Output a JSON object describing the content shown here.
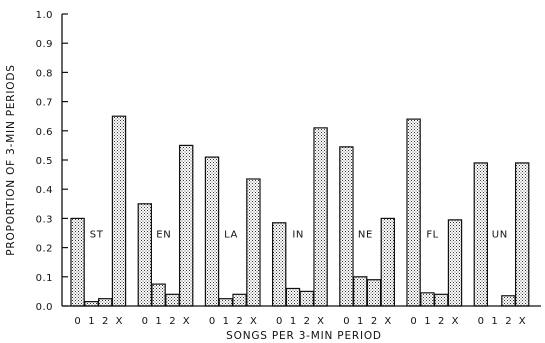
{
  "chart_data": {
    "type": "bar",
    "title": "",
    "xlabel": "SONGS PER 3-MIN PERIOD",
    "ylabel": "PROPORTION OF 3-MIN PERIODS",
    "ylim": [
      0,
      1.0
    ],
    "yticks": [
      "0.0",
      "0.1",
      "0.2",
      "0.3",
      "0.4",
      "0.5",
      "0.6",
      "0.7",
      "0.8",
      "0.9",
      "1.0"
    ],
    "categories": [
      "0",
      "1",
      "2",
      "X"
    ],
    "grid": false,
    "groups": [
      {
        "name": "ST",
        "values": [
          0.3,
          0.015,
          0.025,
          0.65
        ]
      },
      {
        "name": "EN",
        "values": [
          0.35,
          0.075,
          0.04,
          0.55
        ]
      },
      {
        "name": "LA",
        "values": [
          0.51,
          0.025,
          0.04,
          0.435
        ]
      },
      {
        "name": "IN",
        "values": [
          0.285,
          0.06,
          0.05,
          0.61
        ]
      },
      {
        "name": "NE",
        "values": [
          0.545,
          0.1,
          0.09,
          0.3
        ]
      },
      {
        "name": "FL",
        "values": [
          0.64,
          0.045,
          0.04,
          0.295
        ]
      },
      {
        "name": "UN",
        "values": [
          0.49,
          0.0,
          0.035,
          0.49
        ]
      }
    ]
  }
}
